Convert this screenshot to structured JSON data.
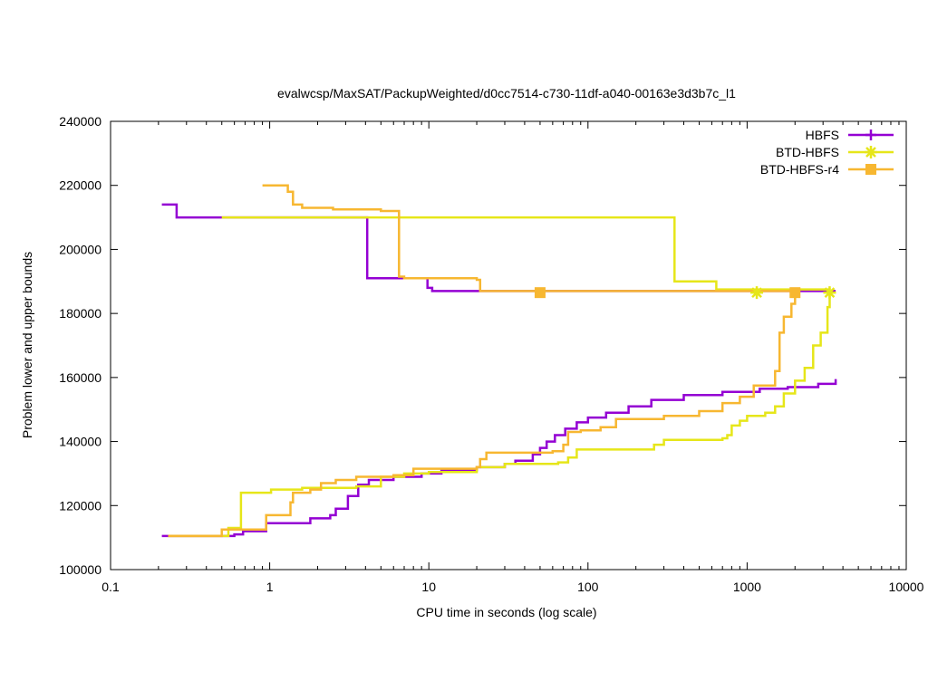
{
  "chart_data": {
    "type": "line",
    "title": "evalwcsp/MaxSAT/PackupWeighted/d0cc7514-c730-11df-a040-00163e3d3b7c_l1",
    "xlabel": "CPU time in seconds (log scale)",
    "ylabel": "Problem lower and upper bounds",
    "x_scale": "log",
    "xlim": [
      0.1,
      10000
    ],
    "ylim": [
      100000,
      240000
    ],
    "x_ticks": [
      0.1,
      1,
      10,
      100,
      1000,
      10000
    ],
    "x_tick_labels": [
      "0.1",
      "1",
      "10",
      "100",
      "1000",
      "10000"
    ],
    "y_ticks": [
      100000,
      120000,
      140000,
      160000,
      180000,
      200000,
      220000,
      240000
    ],
    "y_tick_labels": [
      "100000",
      "120000",
      "140000",
      "160000",
      "180000",
      "200000",
      "220000",
      "240000"
    ],
    "grid": false,
    "legend_position": "top-right",
    "series": [
      {
        "name": "HBFS",
        "color": "#9400d3",
        "marker": "plus",
        "upper": [
          [
            0.21,
            214000
          ],
          [
            0.26,
            214000
          ],
          [
            0.26,
            210000
          ],
          [
            4.1,
            210000
          ],
          [
            4.1,
            191000
          ],
          [
            9.6,
            191000
          ],
          [
            9.8,
            188000
          ],
          [
            10.5,
            187000
          ],
          [
            3600,
            187000
          ]
        ],
        "lower": [
          [
            0.21,
            110500
          ],
          [
            0.5,
            110500
          ],
          [
            0.6,
            111000
          ],
          [
            0.68,
            112000
          ],
          [
            0.85,
            112000
          ],
          [
            0.95,
            114500
          ],
          [
            1.6,
            114500
          ],
          [
            1.8,
            116000
          ],
          [
            2.4,
            117000
          ],
          [
            2.6,
            119000
          ],
          [
            3.1,
            123000
          ],
          [
            3.6,
            126500
          ],
          [
            4.2,
            128000
          ],
          [
            6,
            129000
          ],
          [
            9,
            130000
          ],
          [
            12,
            131000
          ],
          [
            20,
            132000
          ],
          [
            30,
            133000
          ],
          [
            35,
            134000
          ],
          [
            45,
            136000
          ],
          [
            50,
            138000
          ],
          [
            55,
            140000
          ],
          [
            62,
            142000
          ],
          [
            72,
            144000
          ],
          [
            85,
            146000
          ],
          [
            100,
            147500
          ],
          [
            130,
            149000
          ],
          [
            180,
            151000
          ],
          [
            250,
            153000
          ],
          [
            400,
            154500
          ],
          [
            700,
            155500
          ],
          [
            1200,
            156500
          ],
          [
            1800,
            157000
          ],
          [
            2800,
            158000
          ],
          [
            3600,
            159500
          ]
        ],
        "legend_marker_x": 0
      },
      {
        "name": "BTD-HBFS",
        "color": "#e6e619",
        "marker": "star",
        "upper": [
          [
            0.5,
            210000
          ],
          [
            350,
            210000
          ],
          [
            350,
            190000
          ],
          [
            640,
            190000
          ],
          [
            640,
            187500
          ],
          [
            3300,
            187000
          ]
        ],
        "lower": [
          [
            0.23,
            110500
          ],
          [
            0.5,
            110500
          ],
          [
            0.55,
            113000
          ],
          [
            0.64,
            113000
          ],
          [
            0.66,
            124000
          ],
          [
            0.98,
            124000
          ],
          [
            1.02,
            125000
          ],
          [
            1.6,
            125500
          ],
          [
            3.5,
            126000
          ],
          [
            5,
            129000
          ],
          [
            7,
            130000
          ],
          [
            10,
            130500
          ],
          [
            20,
            132000
          ],
          [
            30,
            133000
          ],
          [
            65,
            133500
          ],
          [
            75,
            135000
          ],
          [
            85,
            137500
          ],
          [
            210,
            137500
          ],
          [
            260,
            139000
          ],
          [
            300,
            140500
          ],
          [
            700,
            141000
          ],
          [
            750,
            142000
          ],
          [
            800,
            145000
          ],
          [
            900,
            146500
          ],
          [
            1000,
            148000
          ],
          [
            1300,
            149000
          ],
          [
            1500,
            151000
          ],
          [
            1700,
            155000
          ],
          [
            2000,
            159000
          ],
          [
            2300,
            163000
          ],
          [
            2600,
            170000
          ],
          [
            2900,
            174000
          ],
          [
            3200,
            182000
          ],
          [
            3300,
            186000
          ]
        ],
        "legend_marker_x": 0
      },
      {
        "name": "BTD-HBFS-r4",
        "color": "#f7b731",
        "marker": "square",
        "upper": [
          [
            0.9,
            220000
          ],
          [
            1.2,
            220000
          ],
          [
            1.3,
            218000
          ],
          [
            1.4,
            214000
          ],
          [
            1.6,
            213000
          ],
          [
            2.5,
            212500
          ],
          [
            5,
            212000
          ],
          [
            6.5,
            212000
          ],
          [
            6.5,
            191500
          ],
          [
            7,
            191000
          ],
          [
            14,
            191000
          ],
          [
            20,
            190500
          ],
          [
            21,
            187000
          ],
          [
            2000,
            187000
          ]
        ],
        "lower": [
          [
            0.23,
            110500
          ],
          [
            0.5,
            110500
          ],
          [
            0.5,
            112500
          ],
          [
            0.95,
            113000
          ],
          [
            0.95,
            117000
          ],
          [
            1.25,
            117000
          ],
          [
            1.35,
            121000
          ],
          [
            1.4,
            124000
          ],
          [
            1.8,
            125000
          ],
          [
            2.1,
            127000
          ],
          [
            2.6,
            128000
          ],
          [
            3.5,
            129000
          ],
          [
            6,
            129500
          ],
          [
            8,
            131500
          ],
          [
            20,
            132000
          ],
          [
            21,
            134500
          ],
          [
            23,
            136500
          ],
          [
            60,
            137000
          ],
          [
            70,
            139000
          ],
          [
            75,
            143000
          ],
          [
            90,
            143500
          ],
          [
            120,
            144500
          ],
          [
            150,
            147000
          ],
          [
            300,
            148000
          ],
          [
            500,
            149500
          ],
          [
            700,
            152000
          ],
          [
            900,
            154000
          ],
          [
            1100,
            157500
          ],
          [
            1500,
            162000
          ],
          [
            1600,
            174000
          ],
          [
            1700,
            179000
          ],
          [
            1900,
            183000
          ],
          [
            2000,
            186000
          ]
        ],
        "legend_marker_x": 0
      }
    ],
    "end_markers": [
      {
        "series": "BTD-HBFS",
        "x": 1150,
        "y": 186500
      },
      {
        "series": "BTD-HBFS",
        "x": 3300,
        "y": 186500
      },
      {
        "series": "BTD-HBFS-r4",
        "x": 50,
        "y": 186500
      },
      {
        "series": "BTD-HBFS-r4",
        "x": 2000,
        "y": 186500
      }
    ]
  }
}
